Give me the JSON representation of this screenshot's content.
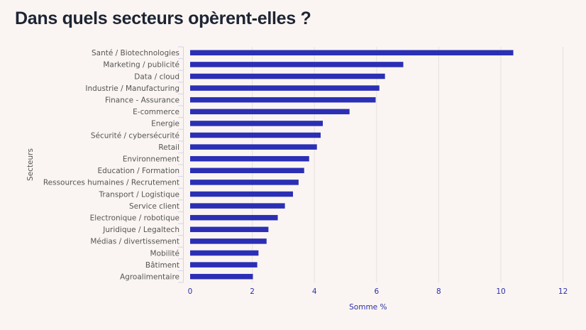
{
  "page": {
    "title": "Dans quels secteurs opèrent-elles ?"
  },
  "chart_data": {
    "type": "bar",
    "orientation": "horizontal",
    "title": "Dans quels secteurs opèrent-elles ?",
    "xlabel": "Somme %",
    "ylabel": "Secteurs",
    "xlim": [
      0,
      12
    ],
    "xticks": [
      0,
      2,
      4,
      6,
      8,
      10,
      12
    ],
    "grid": true,
    "legend": "none",
    "bar_color": "#2b2fb5",
    "categories": [
      "Santé / Biotechnologies",
      "Marketing / publicité",
      "Data / cloud",
      "Industrie / Manufacturing",
      "Finance - Assurance",
      "E-commerce",
      "Energie",
      "Sécurité / cybersécurité",
      "Retail",
      "Environnement",
      "Education / Formation",
      "Ressources humaines / Recrutement",
      "Transport / Logistique",
      "Service client",
      "Electronique / robotique",
      "Juridique / Legaltech",
      "Médias / divertissement",
      "Mobilité",
      "Bâtiment",
      "Agroalimentaire"
    ],
    "values": [
      10.4,
      6.86,
      6.27,
      6.09,
      5.97,
      5.13,
      4.27,
      4.2,
      4.08,
      3.83,
      3.67,
      3.49,
      3.31,
      3.05,
      2.82,
      2.52,
      2.46,
      2.2,
      2.16,
      2.02
    ]
  }
}
